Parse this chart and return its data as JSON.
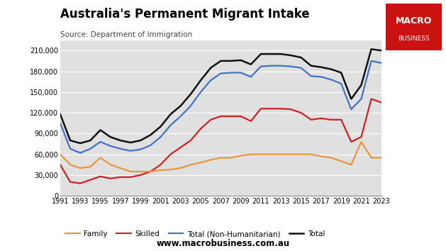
{
  "title": "Australia's Permanent Migrant Intake",
  "subtitle": "Source: Department of Immigration",
  "years": [
    1991,
    1992,
    1993,
    1994,
    1995,
    1996,
    1997,
    1998,
    1999,
    2000,
    2001,
    2002,
    2003,
    2004,
    2005,
    2006,
    2007,
    2008,
    2009,
    2010,
    2011,
    2012,
    2013,
    2014,
    2015,
    2016,
    2017,
    2018,
    2019,
    2020,
    2021,
    2022,
    2023
  ],
  "family": [
    60000,
    45000,
    40000,
    42000,
    55000,
    45000,
    40000,
    35000,
    35000,
    35000,
    37000,
    38000,
    40000,
    45000,
    48000,
    52000,
    55000,
    55000,
    58000,
    60000,
    60000,
    60000,
    60000,
    60000,
    60000,
    60000,
    57000,
    55000,
    50000,
    45000,
    78000,
    55000,
    55000
  ],
  "skilled": [
    45000,
    20000,
    18000,
    23000,
    28000,
    25000,
    27000,
    27000,
    30000,
    35000,
    45000,
    60000,
    70000,
    80000,
    97000,
    110000,
    115000,
    115000,
    115000,
    108000,
    126000,
    126000,
    126000,
    125000,
    120000,
    110000,
    112000,
    110000,
    110000,
    78000,
    85000,
    140000,
    135000
  ],
  "total_non_humanitarian": [
    105000,
    68000,
    62000,
    68000,
    78000,
    72000,
    68000,
    65000,
    67000,
    73000,
    85000,
    102000,
    115000,
    130000,
    150000,
    167000,
    177000,
    178000,
    178000,
    172000,
    187000,
    188000,
    188000,
    187000,
    185000,
    173000,
    172000,
    168000,
    162000,
    125000,
    140000,
    195000,
    192000
  ],
  "total": [
    118000,
    80000,
    76000,
    80000,
    95000,
    85000,
    80000,
    77000,
    80000,
    88000,
    100000,
    118000,
    130000,
    147000,
    167000,
    185000,
    195000,
    195000,
    196000,
    190000,
    205000,
    205000,
    205000,
    203000,
    200000,
    188000,
    186000,
    183000,
    178000,
    140000,
    160000,
    212000,
    210000
  ],
  "family_color": "#E8963C",
  "skilled_color": "#CC2222",
  "total_nh_color": "#4472C4",
  "total_color": "#111111",
  "bg_color": "#E0E0E0",
  "ylim": [
    0,
    225000
  ],
  "yticks": [
    0,
    30000,
    60000,
    90000,
    120000,
    150000,
    180000,
    210000
  ],
  "footer": "www.macrobusiness.com.au",
  "logo_text1": "MACRO",
  "logo_text2": "BUSINESS",
  "logo_bg": "#CC1111"
}
